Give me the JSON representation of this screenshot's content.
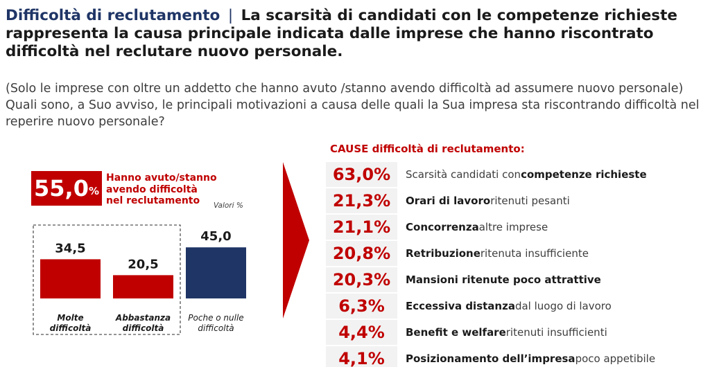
{
  "title": {
    "label": "Difficoltà di reclutamento",
    "separator": "|",
    "text": "La scarsità di candidati con le competenze richieste rappresenta  la causa principale indicata dalle imprese che hanno riscontrato difficoltà nel reclutare nuovo personale."
  },
  "question": "(Solo le imprese con oltre un addetto che hanno avuto /stanno avendo difficoltà ad assumere nuovo personale) Quali sono, a Suo avviso, le principali motivazioni a causa delle quali la Sua impresa sta riscontrando difficoltà nel reperire nuovo personale?",
  "badge": {
    "value": "55,0",
    "unit": "%",
    "note": "Hanno avuto/stanno avendo difficoltà nel reclutamento"
  },
  "units_note": "Valori %",
  "colors": {
    "red": "#c00000",
    "navy": "#1f3566",
    "panel": "#f2f2f2"
  },
  "chart_data": [
    {
      "type": "bar",
      "title": "",
      "categories": [
        "Molte difficoltà",
        "Abbastanza difficoltà",
        "Poche o nulle difficoltà"
      ],
      "values": [
        34.5,
        20.5,
        45.0
      ],
      "value_labels": [
        "34,5",
        "20,5",
        "45,0"
      ],
      "bar_colors": [
        "#c00000",
        "#c00000",
        "#1f3566"
      ],
      "ylim": [
        0,
        50
      ],
      "unit": "Valori %",
      "grouped_by_dashed_box": [
        "Molte difficoltà",
        "Abbastanza difficoltà"
      ]
    },
    {
      "type": "table",
      "title": "CAUSE difficoltà di reclutamento:",
      "rows": [
        {
          "value": 63.0,
          "label": "63,0%",
          "parts": [
            [
              "n",
              "Scarsità candidati con "
            ],
            [
              "b",
              "competenze richieste"
            ]
          ]
        },
        {
          "value": 21.3,
          "label": "21,3%",
          "parts": [
            [
              "b",
              "Orari di lavoro"
            ],
            [
              "n",
              " ritenuti pesanti"
            ]
          ]
        },
        {
          "value": 21.1,
          "label": "21,1%",
          "parts": [
            [
              "b",
              "Concorrenza"
            ],
            [
              "n",
              " altre imprese"
            ]
          ]
        },
        {
          "value": 20.8,
          "label": "20,8%",
          "parts": [
            [
              "b",
              "Retribuzione"
            ],
            [
              "n",
              " ritenuta insufficiente"
            ]
          ]
        },
        {
          "value": 20.3,
          "label": "20,3%",
          "parts": [
            [
              "b",
              "Mansioni  ritenute poco attrattive"
            ]
          ]
        },
        {
          "value": 6.3,
          "label": "6,3%",
          "parts": [
            [
              "b",
              "Eccessiva distanza"
            ],
            [
              "n",
              " dal luogo di lavoro"
            ]
          ]
        },
        {
          "value": 4.4,
          "label": "4,4%",
          "parts": [
            [
              "b",
              "Benefit e welfare"
            ],
            [
              "n",
              " ritenuti insufficienti"
            ]
          ]
        },
        {
          "value": 4.1,
          "label": "4,1%",
          "parts": [
            [
              "b",
              "Posizionamento dell’impresa"
            ],
            [
              "n",
              " poco appetibile"
            ]
          ]
        }
      ]
    }
  ]
}
